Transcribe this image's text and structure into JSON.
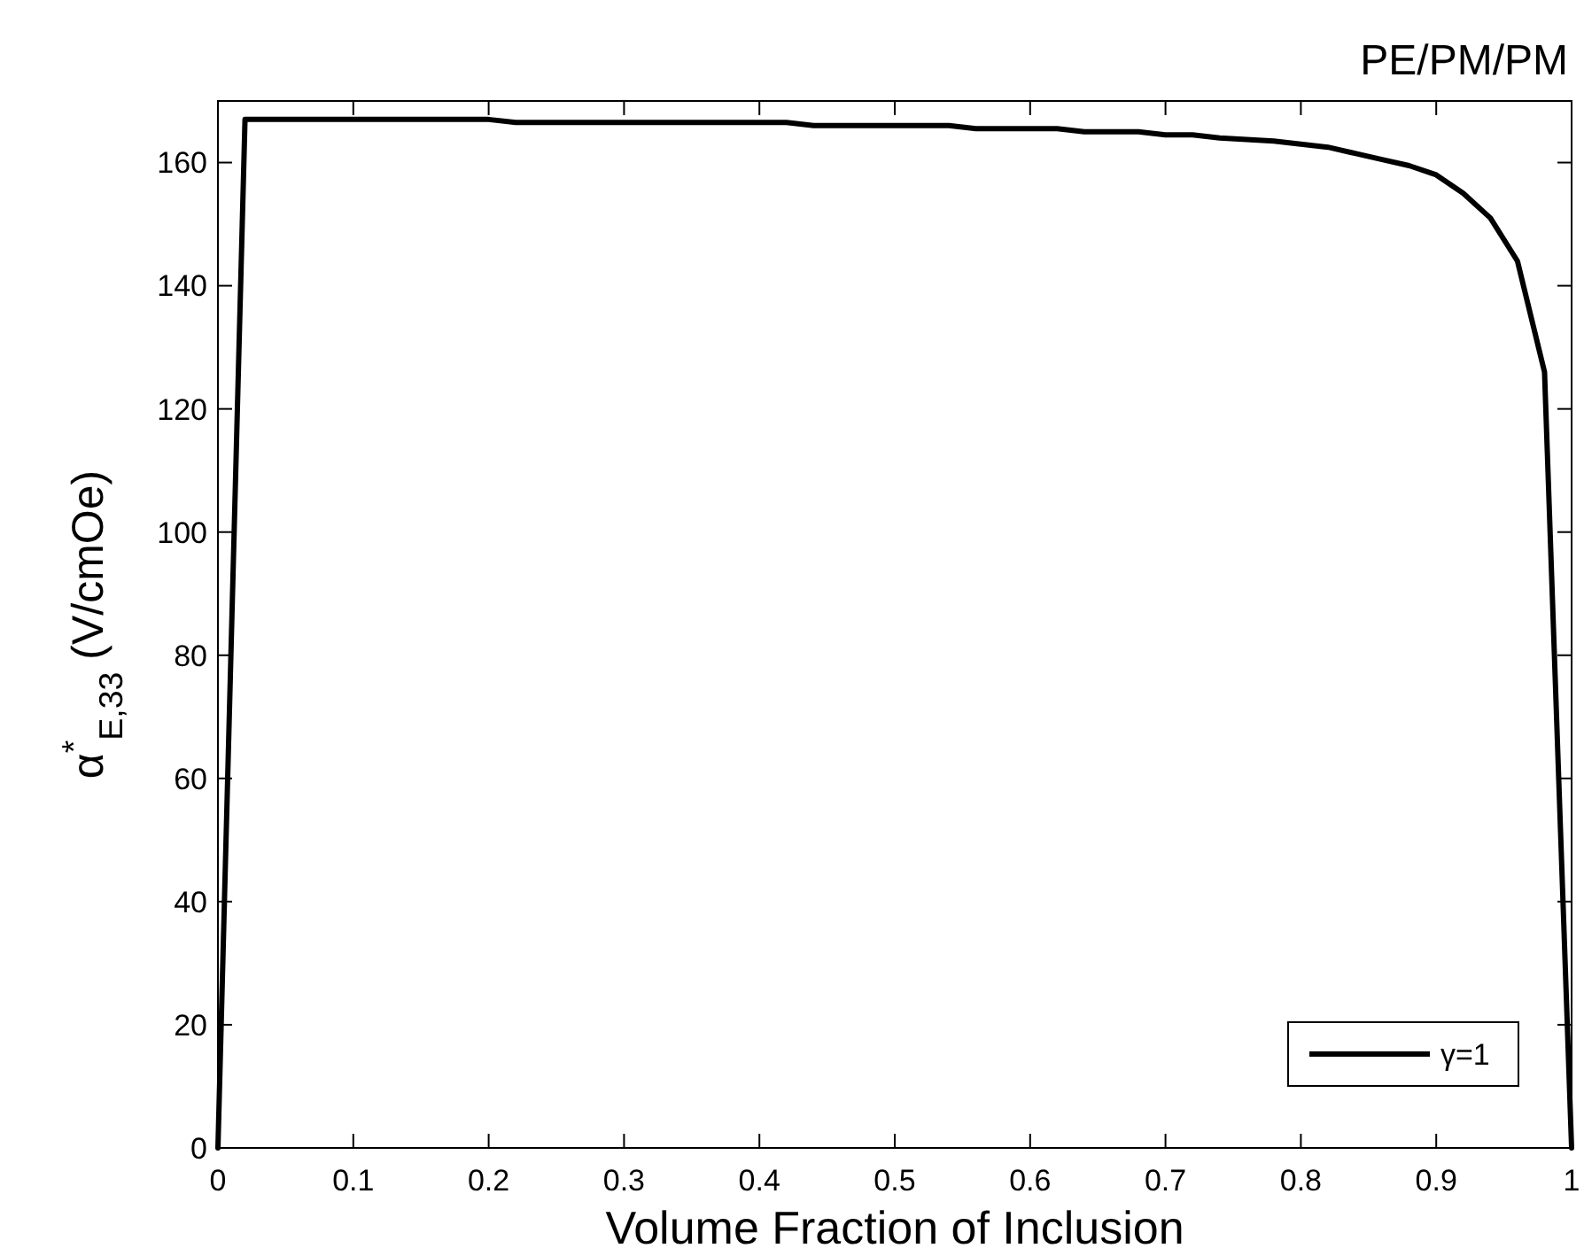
{
  "chart_data": {
    "type": "line",
    "title": "PE/PM/PM",
    "xlabel": "Volume Fraction of Inclusion",
    "ylabel": "α$^{*}$$_{E,33}$ (V/cmOe)",
    "x": [
      0,
      0.02,
      0.2,
      0.22,
      0.42,
      0.44,
      0.54,
      0.56,
      0.62,
      0.64,
      0.68,
      0.7,
      0.72,
      0.74,
      0.78,
      0.8,
      0.82,
      0.84,
      0.86,
      0.88,
      0.9,
      0.92,
      0.94,
      0.96,
      0.98,
      1
    ],
    "series": [
      {
        "name": "γ=1",
        "color": "#000000",
        "values": [
          0,
          167,
          167,
          166.5,
          166.5,
          166,
          166,
          165.5,
          165.5,
          165,
          165,
          164.5,
          164.5,
          164,
          163.5,
          163,
          162.5,
          161.5,
          160.5,
          159.5,
          158,
          155,
          151,
          144,
          126,
          0
        ]
      }
    ],
    "xlim": [
      0,
      1
    ],
    "xticks": [
      0,
      0.1,
      0.2,
      0.3,
      0.4,
      0.5,
      0.6,
      0.7,
      0.8,
      0.9,
      1
    ],
    "ylim": [
      0,
      170
    ],
    "yticks": [
      0,
      20,
      40,
      60,
      80,
      100,
      120,
      140,
      160
    ],
    "legend": "bottom right",
    "grid": false,
    "line_style": "solid",
    "marker": "none"
  }
}
